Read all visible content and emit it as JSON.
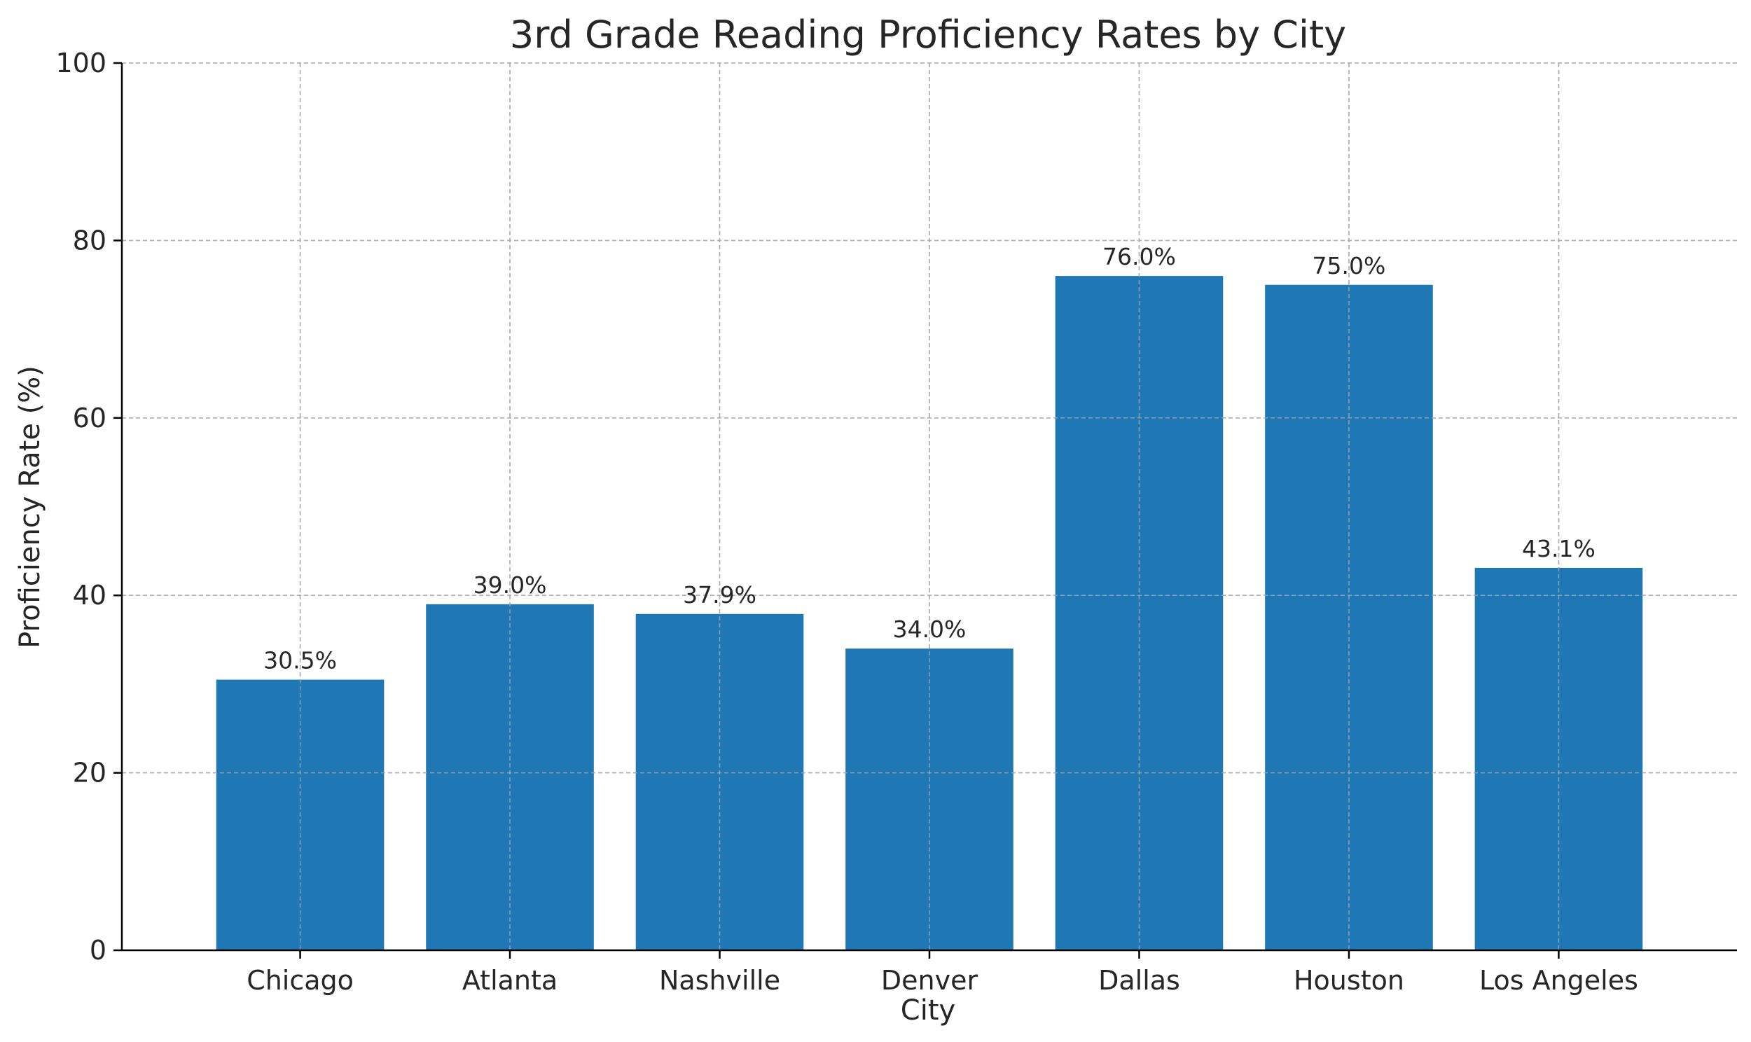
{
  "chart_data": {
    "type": "bar",
    "title": "3rd Grade Reading Proficiency Rates by City",
    "xlabel": "City",
    "ylabel": "Proficiency Rate (%)",
    "categories": [
      "Chicago",
      "Atlanta",
      "Nashville",
      "Denver",
      "Dallas",
      "Houston",
      "Los Angeles"
    ],
    "values": [
      30.5,
      39.0,
      37.9,
      34.0,
      76.0,
      75.0,
      43.1
    ],
    "value_labels": [
      "30.5%",
      "39.0%",
      "37.9%",
      "34.0%",
      "76.0%",
      "75.0%",
      "43.1%"
    ],
    "ylim": [
      0,
      100
    ],
    "yticks": [
      0,
      20,
      40,
      60,
      80,
      100
    ],
    "grid": true,
    "legend": false,
    "bar_color": "#1f77b4"
  }
}
